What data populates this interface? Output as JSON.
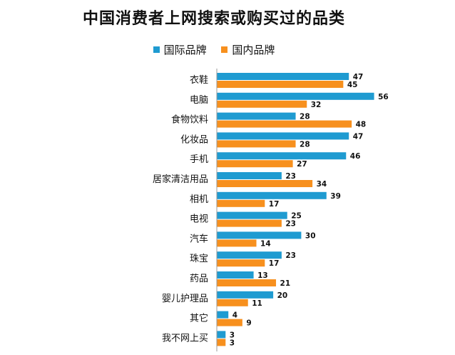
{
  "chart_data": {
    "type": "bar",
    "orientation": "horizontal",
    "title": "中国消费者上网搜索或购买过的品类",
    "categories": [
      "衣鞋",
      "电脑",
      "食物饮料",
      "化妆品",
      "手机",
      "居家清洁用品",
      "相机",
      "电视",
      "汽车",
      "珠宝",
      "药品",
      "婴儿护理品",
      "其它",
      "我不网上买"
    ],
    "series": [
      {
        "name": "国际品牌",
        "color": "#1f9bd1",
        "values": [
          47,
          56,
          28,
          47,
          46,
          23,
          39,
          25,
          30,
          23,
          13,
          20,
          4,
          3
        ]
      },
      {
        "name": "国内品牌",
        "color": "#f7901e",
        "values": [
          45,
          32,
          48,
          28,
          27,
          34,
          17,
          23,
          14,
          17,
          21,
          11,
          9,
          3
        ]
      }
    ],
    "xlim": [
      0,
      56
    ],
    "legend_position": "top",
    "grid": false
  }
}
